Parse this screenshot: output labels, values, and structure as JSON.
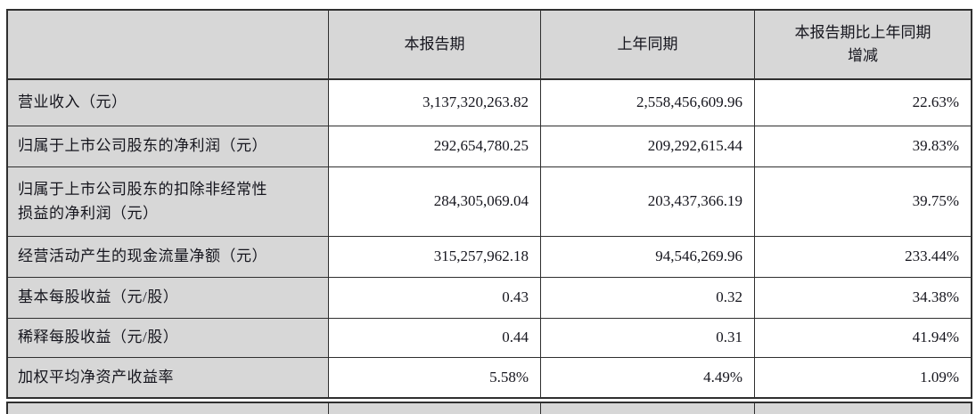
{
  "page": {
    "background_color": "#ffffff"
  },
  "table": {
    "colors": {
      "header_fill": "#d7d7d7",
      "label_column_fill": "#d7d7d7",
      "data_cell_fill": "#ffffff",
      "border": "#2f2f2f",
      "text": "#15151d"
    },
    "headers": {
      "col1": "",
      "col2": "本报告期",
      "col3": "上年同期",
      "col4_lines": [
        "本报告期比上年同期",
        "增减"
      ]
    },
    "rows": [
      {
        "label_lines": [
          "营业收入（元）"
        ],
        "values": [
          "3,137,320,263.82",
          "2,558,456,609.96",
          "22.63%"
        ]
      },
      {
        "label_lines": [
          "归属于上市公司股东的净利润（元）"
        ],
        "values": [
          "292,654,780.25",
          "209,292,615.44",
          "39.83%"
        ]
      },
      {
        "label_lines": [
          "归属于上市公司股东的扣除非经常性",
          "损益的净利润（元）"
        ],
        "values": [
          "284,305,069.04",
          "203,437,366.19",
          "39.75%"
        ]
      },
      {
        "label_lines": [
          "经营活动产生的现金流量净额（元）"
        ],
        "values": [
          "315,257,962.18",
          "94,546,269.96",
          "233.44%"
        ]
      },
      {
        "label_lines": [
          "基本每股收益（元/股）"
        ],
        "values": [
          "0.43",
          "0.32",
          "34.38%"
        ]
      },
      {
        "label_lines": [
          "稀释每股收益（元/股）"
        ],
        "values": [
          "0.44",
          "0.31",
          "41.94%"
        ]
      },
      {
        "label_lines": [
          "加权平均净资产收益率"
        ],
        "values": [
          "5.58%",
          "4.49%",
          "1.09%"
        ]
      }
    ]
  }
}
